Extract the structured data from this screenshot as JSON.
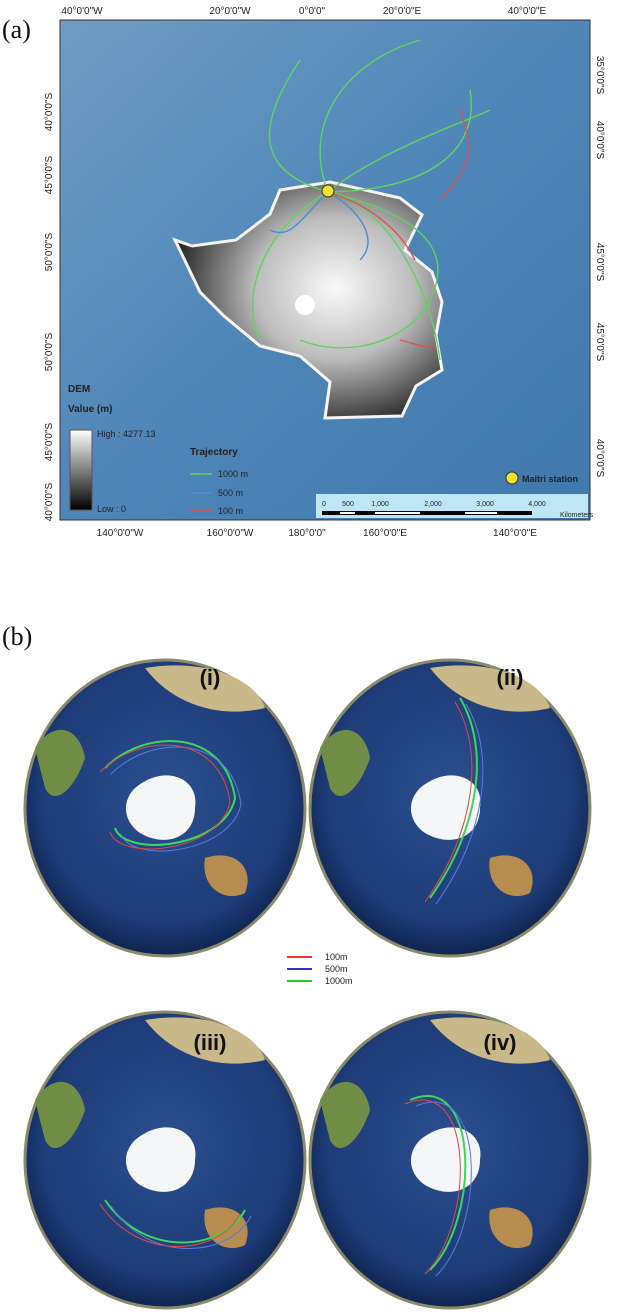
{
  "panel_a": {
    "label": "(a)",
    "top_labels": [
      "40°0'0\"W",
      "20°0'0\"W",
      "0°0'0\"",
      "20°0'0\"E",
      "40°0'0\"E"
    ],
    "left_labels": [
      "40°0'0\"S",
      "45°0'0\"S",
      "50°0'0\"S",
      "50°0'0\"S",
      "45°0'0\"S",
      "40°0'0\"S"
    ],
    "right_labels": [
      "35°0'0\"S",
      "40°0'0\"S",
      "45°0'0\"S",
      "45°0'0\"S",
      "40°0'0\"S"
    ],
    "bottom_labels": [
      "140°0'0\"W",
      "160°0'0\"W",
      "180°0'0\"",
      "160°0'0\"E",
      "140°0'0\"E"
    ],
    "dem_legend": {
      "title": "DEM",
      "subtitle": "Value (m)",
      "high": "High : 4277.13",
      "low": "Low : 0"
    },
    "trajectory_legend": {
      "title": "Trajectory",
      "items": [
        "1000 m",
        "500 m",
        "100 m"
      ]
    },
    "station": "Maitri station",
    "scale_bar": {
      "labels": [
        "0",
        "500",
        "1,000",
        "2,000",
        "3,000",
        "4,000"
      ],
      "unit": "Kilometers"
    }
  },
  "panel_b": {
    "label": "(b)",
    "globes": [
      "(i)",
      "(ii)",
      "(iii)",
      "(iv)"
    ],
    "legend": [
      "100m",
      "500m",
      "1000m"
    ]
  }
}
